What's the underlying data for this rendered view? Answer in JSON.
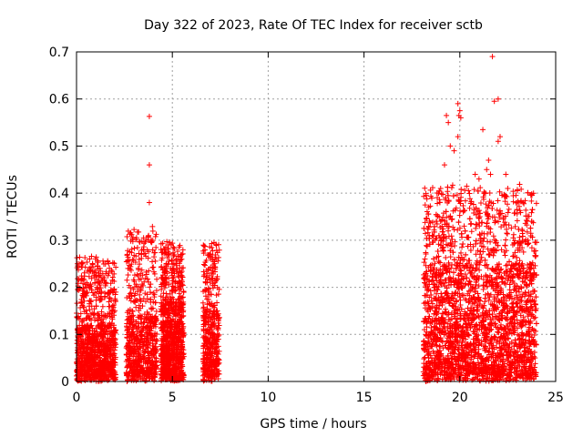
{
  "chart_data": {
    "type": "scatter",
    "title": "Day 322 of 2023, Rate Of TEC Index for receiver sctb",
    "xlabel": "GPS time / hours",
    "ylabel": "ROTI / TECUs",
    "xlim": [
      0,
      25
    ],
    "ylim": [
      0,
      0.7
    ],
    "x_ticks": [
      "0",
      "5",
      "10",
      "15",
      "20",
      "25"
    ],
    "y_ticks": [
      "0",
      "0.1",
      "0.2",
      "0.3",
      "0.4",
      "0.5",
      "0.6",
      "0.7"
    ],
    "grid": true,
    "marker": "+",
    "color": "#ff0000",
    "clusters": [
      {
        "x_range": [
          0.0,
          2.05
        ],
        "y_typical": 0.12,
        "y_max": 0.25,
        "density": 1100
      },
      {
        "x_range": [
          2.6,
          4.2
        ],
        "y_typical": 0.14,
        "y_max": 0.31,
        "density": 700
      },
      {
        "x_range": [
          4.4,
          5.6
        ],
        "y_typical": 0.17,
        "y_max": 0.28,
        "density": 900
      },
      {
        "x_range": [
          6.6,
          7.45
        ],
        "y_typical": 0.15,
        "y_max": 0.29,
        "density": 450
      },
      {
        "x_range": [
          18.1,
          24.0
        ],
        "y_typical": 0.25,
        "y_max": 0.4,
        "density": 3200
      }
    ],
    "outliers": [
      {
        "x": 3.8,
        "y": 0.563
      },
      {
        "x": 3.8,
        "y": 0.46
      },
      {
        "x": 3.8,
        "y": 0.38
      },
      {
        "x": 3.5,
        "y": 0.305
      },
      {
        "x": 3.9,
        "y": 0.3
      },
      {
        "x": 19.3,
        "y": 0.565
      },
      {
        "x": 19.4,
        "y": 0.55
      },
      {
        "x": 19.5,
        "y": 0.5
      },
      {
        "x": 19.2,
        "y": 0.46
      },
      {
        "x": 19.0,
        "y": 0.41
      },
      {
        "x": 19.7,
        "y": 0.49
      },
      {
        "x": 19.9,
        "y": 0.59
      },
      {
        "x": 20.0,
        "y": 0.575
      },
      {
        "x": 19.95,
        "y": 0.565
      },
      {
        "x": 20.05,
        "y": 0.56
      },
      {
        "x": 19.9,
        "y": 0.52
      },
      {
        "x": 21.2,
        "y": 0.535
      },
      {
        "x": 21.7,
        "y": 0.69
      },
      {
        "x": 21.8,
        "y": 0.595
      },
      {
        "x": 22.0,
        "y": 0.6
      },
      {
        "x": 22.0,
        "y": 0.51
      },
      {
        "x": 22.1,
        "y": 0.52
      },
      {
        "x": 21.5,
        "y": 0.47
      },
      {
        "x": 21.4,
        "y": 0.45
      },
      {
        "x": 21.6,
        "y": 0.44
      },
      {
        "x": 22.4,
        "y": 0.44
      },
      {
        "x": 22.5,
        "y": 0.41
      },
      {
        "x": 20.8,
        "y": 0.44
      },
      {
        "x": 21.0,
        "y": 0.43
      },
      {
        "x": 23.0,
        "y": 0.405
      },
      {
        "x": 23.3,
        "y": 0.38
      }
    ]
  }
}
